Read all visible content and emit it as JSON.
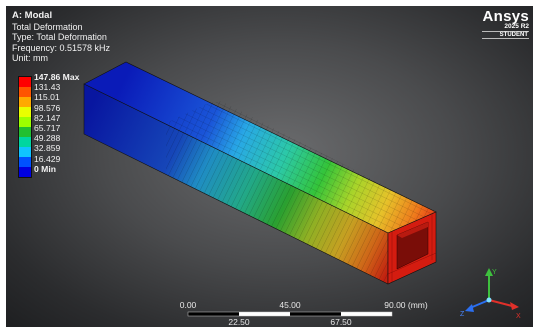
{
  "analysis": {
    "system": "A: Modal",
    "result": "Total Deformation",
    "type": "Type: Total Deformation",
    "frequency": "Frequency: 0.51578 kHz",
    "unit": "Unit: mm"
  },
  "legend": {
    "labels": [
      "147.86 Max",
      "131.43",
      "115.01",
      "98.576",
      "82.147",
      "65.717",
      "49.288",
      "32.859",
      "16.429",
      "0 Min"
    ],
    "colors": [
      "#ff0000",
      "#ff5500",
      "#ffaa00",
      "#eaff00",
      "#9dff00",
      "#22c030",
      "#00d6a0",
      "#10c4ff",
      "#0052ff",
      "#0000e0"
    ]
  },
  "logo": {
    "brand": "Ansys",
    "version": "2025 R2",
    "edition": "STUDENT"
  },
  "scale_bar": {
    "top_labels": [
      "0.00",
      "45.00",
      "90.00 (mm)"
    ],
    "bottom_labels": [
      "22.50",
      "67.50"
    ]
  },
  "triad": {
    "y": "Y",
    "z": "Z",
    "x": "X"
  }
}
